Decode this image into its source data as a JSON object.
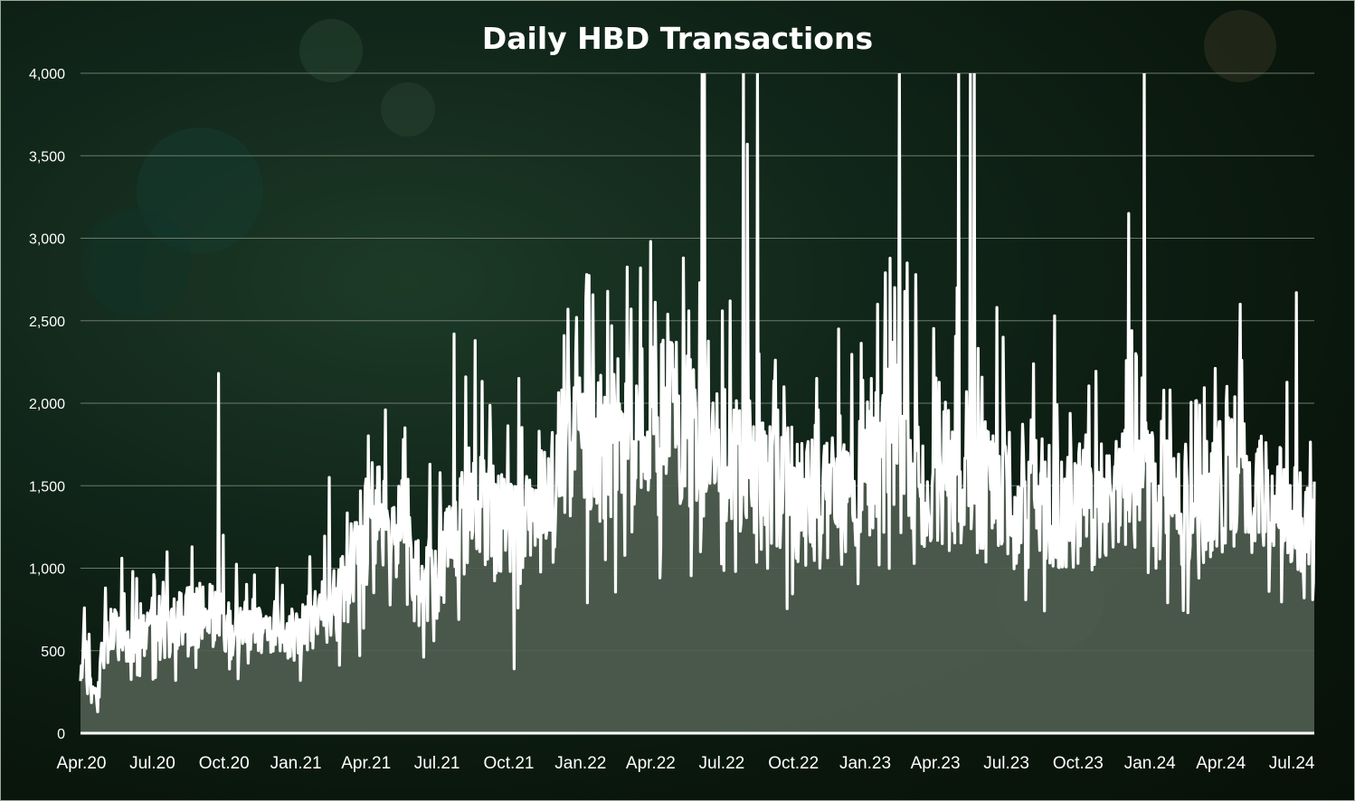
{
  "chart_data": {
    "type": "area",
    "title": "Daily HBD Transactions",
    "xlabel": "",
    "ylabel": "",
    "ylim": [
      0,
      4000
    ],
    "yticks": [
      0,
      500,
      1000,
      1500,
      2000,
      2500,
      3000,
      3500,
      4000
    ],
    "ytick_labels": [
      "0",
      "500",
      "1,000",
      "1,500",
      "2,000",
      "2,500",
      "3,000",
      "3,500",
      "4,000"
    ],
    "xtick_labels": [
      "Apr.20",
      "Jul.20",
      "Oct.20",
      "Jan.21",
      "Apr.21",
      "Jul.21",
      "Oct.21",
      "Jan.22",
      "Apr.22",
      "Jul.22",
      "Oct.22",
      "Jan.23",
      "Apr.23",
      "Jul.23",
      "Oct.23",
      "Jan.24",
      "Apr.24",
      "Jul.24"
    ],
    "x_start": "2020-04-01",
    "x_end": "2024-07-31",
    "grid": true,
    "legend": "none",
    "colors": {
      "line": "#ffffff",
      "area": "#4f5d50",
      "grid": "#6c7a6c",
      "axis": "#ffffff"
    },
    "series": [
      {
        "name": "",
        "frequency": "daily",
        "weekly_baseline": [
          [
            "2020-04-01",
            300
          ],
          [
            "2020-04-08",
            450
          ],
          [
            "2020-04-15",
            250
          ],
          [
            "2020-04-22",
            220
          ],
          [
            "2020-05-01",
            550
          ],
          [
            "2020-05-15",
            600
          ],
          [
            "2020-06-01",
            580
          ],
          [
            "2020-06-15",
            620
          ],
          [
            "2020-07-01",
            600
          ],
          [
            "2020-07-15",
            620
          ],
          [
            "2020-08-01",
            650
          ],
          [
            "2020-08-15",
            700
          ],
          [
            "2020-09-01",
            720
          ],
          [
            "2020-09-15",
            700
          ],
          [
            "2020-10-01",
            680
          ],
          [
            "2020-10-15",
            650
          ],
          [
            "2020-11-01",
            640
          ],
          [
            "2020-11-15",
            650
          ],
          [
            "2020-12-01",
            660
          ],
          [
            "2020-12-15",
            620
          ],
          [
            "2021-01-01",
            600
          ],
          [
            "2021-01-15",
            650
          ],
          [
            "2021-02-01",
            720
          ],
          [
            "2021-02-15",
            760
          ],
          [
            "2021-03-01",
            830
          ],
          [
            "2021-03-15",
            900
          ],
          [
            "2021-04-01",
            1200
          ],
          [
            "2021-04-15",
            1380
          ],
          [
            "2021-05-01",
            1350
          ],
          [
            "2021-05-15",
            1300
          ],
          [
            "2021-06-01",
            950
          ],
          [
            "2021-06-15",
            900
          ],
          [
            "2021-07-01",
            1000
          ],
          [
            "2021-07-15",
            1100
          ],
          [
            "2021-08-01",
            1250
          ],
          [
            "2021-08-15",
            1400
          ],
          [
            "2021-09-01",
            1350
          ],
          [
            "2021-09-15",
            1250
          ],
          [
            "2021-10-01",
            1200
          ],
          [
            "2021-10-15",
            1250
          ],
          [
            "2021-11-01",
            1300
          ],
          [
            "2021-11-15",
            1350
          ],
          [
            "2021-12-01",
            1450
          ],
          [
            "2021-12-15",
            1750
          ],
          [
            "2022-01-01",
            1900
          ],
          [
            "2022-01-15",
            1800
          ],
          [
            "2022-02-01",
            1750
          ],
          [
            "2022-02-15",
            1700
          ],
          [
            "2022-03-01",
            1750
          ],
          [
            "2022-03-15",
            1800
          ],
          [
            "2022-04-01",
            1850
          ],
          [
            "2022-04-15",
            1900
          ],
          [
            "2022-05-01",
            1850
          ],
          [
            "2022-05-15",
            1800
          ],
          [
            "2022-06-01",
            1750
          ],
          [
            "2022-06-15",
            1700
          ],
          [
            "2022-07-01",
            1650
          ],
          [
            "2022-07-15",
            1600
          ],
          [
            "2022-08-01",
            1600
          ],
          [
            "2022-08-15",
            1550
          ],
          [
            "2022-09-01",
            1500
          ],
          [
            "2022-09-15",
            1450
          ],
          [
            "2022-10-01",
            1450
          ],
          [
            "2022-10-15",
            1400
          ],
          [
            "2022-11-01",
            1400
          ],
          [
            "2022-11-15",
            1400
          ],
          [
            "2022-12-01",
            1400
          ],
          [
            "2022-12-15",
            1450
          ],
          [
            "2023-01-01",
            1500
          ],
          [
            "2023-01-15",
            1750
          ],
          [
            "2023-02-01",
            1850
          ],
          [
            "2023-02-15",
            1800
          ],
          [
            "2023-03-01",
            1550
          ],
          [
            "2023-03-15",
            1500
          ],
          [
            "2023-04-01",
            1550
          ],
          [
            "2023-04-15",
            1600
          ],
          [
            "2023-05-01",
            1550
          ],
          [
            "2023-05-15",
            1500
          ],
          [
            "2023-06-01",
            1450
          ],
          [
            "2023-06-15",
            1420
          ],
          [
            "2023-07-01",
            1400
          ],
          [
            "2023-07-15",
            1380
          ],
          [
            "2023-08-01",
            1400
          ],
          [
            "2023-08-15",
            1400
          ],
          [
            "2023-09-01",
            1380
          ],
          [
            "2023-09-15",
            1350
          ],
          [
            "2023-10-01",
            1380
          ],
          [
            "2023-10-15",
            1400
          ],
          [
            "2023-11-01",
            1420
          ],
          [
            "2023-11-15",
            1450
          ],
          [
            "2023-12-01",
            1500
          ],
          [
            "2023-12-15",
            1520
          ],
          [
            "2024-01-01",
            1500
          ],
          [
            "2024-01-15",
            1450
          ],
          [
            "2024-02-01",
            1420
          ],
          [
            "2024-02-15",
            1380
          ],
          [
            "2024-03-01",
            1400
          ],
          [
            "2024-03-15",
            1450
          ],
          [
            "2024-04-01",
            1480
          ],
          [
            "2024-04-15",
            1500
          ],
          [
            "2024-05-01",
            1480
          ],
          [
            "2024-05-15",
            1450
          ],
          [
            "2024-06-01",
            1420
          ],
          [
            "2024-06-15",
            1400
          ],
          [
            "2024-07-01",
            1350
          ],
          [
            "2024-07-15",
            1300
          ],
          [
            "2024-07-31",
            1250
          ]
        ],
        "peaks": [
          [
            "2020-04-06",
            760
          ],
          [
            "2020-04-12",
            600
          ],
          [
            "2020-04-23",
            130
          ],
          [
            "2020-05-03",
            880
          ],
          [
            "2020-05-24",
            1060
          ],
          [
            "2020-06-07",
            980
          ],
          [
            "2020-07-21",
            1100
          ],
          [
            "2020-08-22",
            1130
          ],
          [
            "2020-09-25",
            2180
          ],
          [
            "2020-10-01",
            1200
          ],
          [
            "2020-11-10",
            960
          ],
          [
            "2020-12-09",
            1000
          ],
          [
            "2021-01-20",
            1070
          ],
          [
            "2021-02-14",
            1550
          ],
          [
            "2021-03-14",
            1270
          ],
          [
            "2021-04-10",
            1640
          ],
          [
            "2021-04-27",
            1960
          ],
          [
            "2021-05-20",
            1780
          ],
          [
            "2021-06-23",
            1630
          ],
          [
            "2021-07-10",
            1070
          ],
          [
            "2021-07-24",
            2420
          ],
          [
            "2021-08-08",
            2160
          ],
          [
            "2021-08-20",
            2380
          ],
          [
            "2021-10-09",
            390
          ],
          [
            "2021-10-15",
            2150
          ],
          [
            "2021-11-10",
            1830
          ],
          [
            "2021-12-12",
            2410
          ],
          [
            "2021-12-17",
            2570
          ],
          [
            "2021-12-28",
            2520
          ],
          [
            "2022-01-10",
            2780
          ],
          [
            "2022-01-11",
            790
          ],
          [
            "2022-02-19",
            2270
          ],
          [
            "2022-03-20",
            2820
          ],
          [
            "2022-04-02",
            2980
          ],
          [
            "2022-05-05",
            2370
          ],
          [
            "2022-05-21",
            2560
          ],
          [
            "2022-06-07",
            4600
          ],
          [
            "2022-06-10",
            4600
          ],
          [
            "2022-07-03",
            2560
          ],
          [
            "2022-07-13",
            2620
          ],
          [
            "2022-07-30",
            4600
          ],
          [
            "2022-08-04",
            3570
          ],
          [
            "2022-08-17",
            4600
          ],
          [
            "2022-08-19",
            2300
          ],
          [
            "2022-09-20",
            2100
          ],
          [
            "2022-11-01",
            2150
          ],
          [
            "2022-11-29",
            2450
          ],
          [
            "2023-01-10",
            2150
          ],
          [
            "2023-02-07",
            2370
          ],
          [
            "2023-02-15",
            4600
          ],
          [
            "2023-02-25",
            2850
          ],
          [
            "2023-03-08",
            2780
          ],
          [
            "2023-04-30",
            2700
          ],
          [
            "2023-05-02",
            4600
          ],
          [
            "2023-05-12",
            2070
          ],
          [
            "2023-05-17",
            4600
          ],
          [
            "2023-05-22",
            4600
          ],
          [
            "2023-06-20",
            2580
          ],
          [
            "2023-06-28",
            2400
          ],
          [
            "2023-09-02",
            2530
          ],
          [
            "2023-12-06",
            3150
          ],
          [
            "2023-12-26",
            4600
          ],
          [
            "2024-04-27",
            2600
          ],
          [
            "2024-07-08",
            2670
          ]
        ],
        "troughs": [
          [
            "2020-04-23",
            130
          ],
          [
            "2020-08-01",
            320
          ],
          [
            "2020-10-20",
            330
          ],
          [
            "2021-01-08",
            320
          ],
          [
            "2021-03-25",
            470
          ],
          [
            "2021-06-28",
            560
          ],
          [
            "2021-10-09",
            390
          ],
          [
            "2022-01-11",
            790
          ],
          [
            "2022-06-05",
            1100
          ],
          [
            "2022-07-20",
            980
          ],
          [
            "2022-11-05",
            1000
          ],
          [
            "2023-01-20",
            1020
          ],
          [
            "2023-10-20",
            990
          ],
          [
            "2024-01-10",
            1000
          ],
          [
            "2024-03-05",
            940
          ],
          [
            "2024-07-18",
            820
          ]
        ]
      }
    ]
  }
}
